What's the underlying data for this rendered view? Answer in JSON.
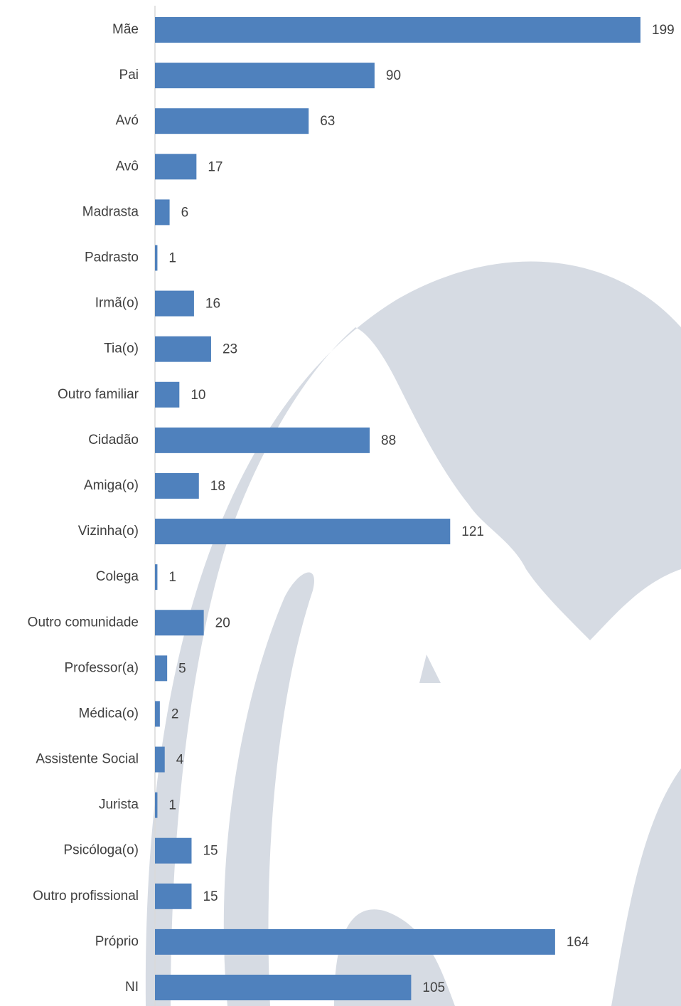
{
  "chart_data": {
    "type": "barh",
    "categories": [
      "Mãe",
      "Pai",
      "Avó",
      "Avô",
      "Madrasta",
      "Padrasto",
      "Irmã(o)",
      "Tia(o)",
      "Outro familiar",
      "Cidadão",
      "Amiga(o)",
      "Vizinha(o)",
      "Colega",
      "Outro comunidade",
      "Professor(a)",
      "Médica(o)",
      "Assistente Social",
      "Jurista",
      "Psicóloga(o)",
      "Outro profissional",
      "Próprio",
      "NI"
    ],
    "values": [
      199,
      90,
      63,
      17,
      6,
      1,
      16,
      23,
      10,
      88,
      18,
      121,
      1,
      20,
      5,
      2,
      4,
      1,
      15,
      15,
      164,
      105
    ],
    "color": "#4f81bd"
  }
}
